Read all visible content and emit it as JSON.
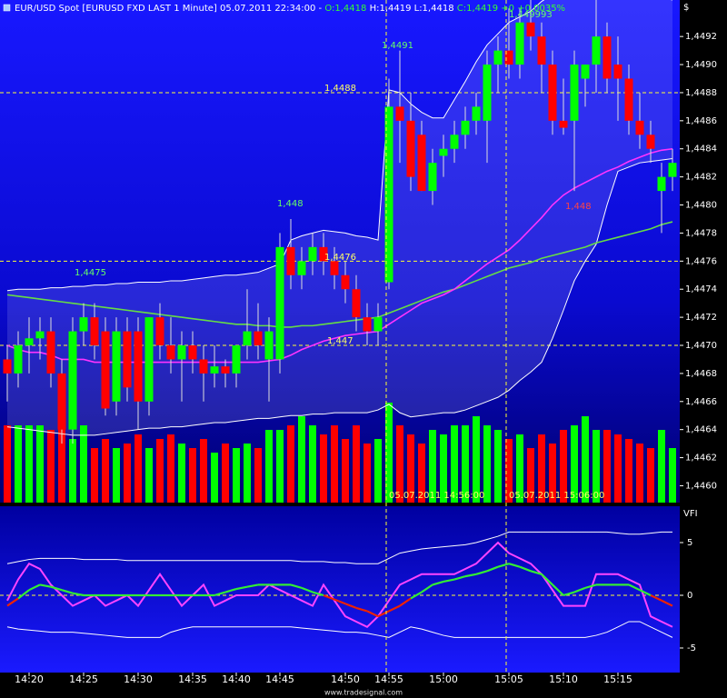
{
  "chart_data": [
    {
      "type": "candlestick",
      "title_parts": [
        {
          "text": "EUR/USD Spot [EURUSD FXD LAST 1 Minute] 05.07.2011 22:34:00 -",
          "color": "#ffffff"
        },
        {
          "text": "O:1,4418",
          "color": "#33ff33"
        },
        {
          "text": "H:1,4419 L:1,4418",
          "color": "#ffffff"
        },
        {
          "text": "C:1,4419 +0 +0,0035%",
          "color": "#33ff33"
        }
      ],
      "axis_label": "$",
      "open": [
        1.4469,
        1.4468,
        1.447,
        1.44705,
        1.4471,
        1.4468,
        1.4464,
        1.4471,
        1.4472,
        1.4471,
        1.4466,
        1.4471,
        1.4471,
        1.4466,
        1.4472,
        1.447,
        1.4469,
        1.447,
        1.4469,
        1.4468,
        1.44685,
        1.4468,
        1.447,
        1.4471,
        1.4469,
        1.4469,
        1.4477,
        1.4475,
        1.4476,
        1.4477,
        1.4476,
        1.4475,
        1.4474,
        1.4472,
        1.4471,
        1.44745,
        1.4487,
        1.4486,
        1.4485,
        1.4481,
        1.44835,
        1.4484,
        1.4485,
        1.4486,
        1.4486,
        1.449,
        1.4491,
        1.449,
        1.4493,
        1.4492,
        1.449,
        1.4486,
        1.4486,
        1.4489,
        1.449,
        1.4492,
        1.449,
        1.4489,
        1.4486,
        1.4485,
        1.4481,
        1.4482
      ],
      "high": [
        1.447,
        1.4471,
        1.4472,
        1.4472,
        1.4472,
        1.4469,
        1.4472,
        1.4473,
        1.4473,
        1.4472,
        1.4472,
        1.4472,
        1.4472,
        1.4472,
        1.4473,
        1.4472,
        1.4471,
        1.4471,
        1.447,
        1.447,
        1.4469,
        1.447,
        1.4474,
        1.4473,
        1.4472,
        1.4478,
        1.4479,
        1.4477,
        1.4478,
        1.4478,
        1.4477,
        1.4476,
        1.4475,
        1.4473,
        1.4473,
        1.4489,
        1.4491,
        1.4488,
        1.4486,
        1.4484,
        1.4485,
        1.4486,
        1.4487,
        1.4488,
        1.4491,
        1.4492,
        1.4494,
        1.4494,
        1.4495,
        1.4493,
        1.4491,
        1.4489,
        1.4491,
        1.449,
        1.4495,
        1.4493,
        1.4492,
        1.449,
        1.4488,
        1.4486,
        1.4483,
        1.4484
      ],
      "low": [
        1.4466,
        1.4467,
        1.4468,
        1.4469,
        1.4467,
        1.4463,
        1.4463,
        1.447,
        1.4469,
        1.4465,
        1.4465,
        1.4466,
        1.4464,
        1.4465,
        1.4469,
        1.4468,
        1.4466,
        1.4468,
        1.4466,
        1.4467,
        1.4467,
        1.4467,
        1.4469,
        1.4469,
        1.4466,
        1.4468,
        1.4474,
        1.4474,
        1.4475,
        1.4475,
        1.4474,
        1.4473,
        1.4471,
        1.447,
        1.447,
        1.4474,
        1.4483,
        1.4481,
        1.4481,
        1.448,
        1.4482,
        1.4483,
        1.4484,
        1.4485,
        1.4483,
        1.4488,
        1.4489,
        1.4489,
        1.4491,
        1.4488,
        1.4485,
        1.4485,
        1.4481,
        1.4487,
        1.4488,
        1.4488,
        1.4486,
        1.4485,
        1.4484,
        1.4483,
        1.4478,
        1.4481
      ],
      "close": [
        1.4468,
        1.447,
        1.44705,
        1.4471,
        1.4468,
        1.4464,
        1.4471,
        1.4472,
        1.447,
        1.44655,
        1.4471,
        1.4467,
        1.4466,
        1.4472,
        1.447,
        1.4469,
        1.447,
        1.4469,
        1.4468,
        1.44685,
        1.4468,
        1.447,
        1.4471,
        1.447,
        1.4471,
        1.4477,
        1.4475,
        1.4476,
        1.4477,
        1.4476,
        1.4475,
        1.4474,
        1.4472,
        1.4471,
        1.4472,
        1.4487,
        1.4486,
        1.4482,
        1.4481,
        1.4483,
        1.4484,
        1.4485,
        1.4486,
        1.4487,
        1.449,
        1.4491,
        1.449,
        1.4493,
        1.4492,
        1.449,
        1.4486,
        1.44855,
        1.449,
        1.449,
        1.4492,
        1.4489,
        1.4489,
        1.4486,
        1.4485,
        1.4484,
        1.4482,
        1.4483
      ],
      "up_color": "#00ff00",
      "down_color": "#ff0000",
      "volume": [
        85,
        85,
        85,
        85,
        80,
        90,
        70,
        85,
        60,
        70,
        60,
        65,
        75,
        60,
        70,
        75,
        65,
        60,
        70,
        55,
        65,
        60,
        65,
        60,
        80,
        80,
        85,
        95,
        85,
        75,
        85,
        70,
        85,
        65,
        70,
        110,
        85,
        75,
        65,
        80,
        75,
        85,
        85,
        95,
        85,
        80,
        70,
        75,
        60,
        75,
        65,
        80,
        85,
        95,
        80,
        80,
        75,
        70,
        65,
        60,
        80,
        60
      ],
      "series": [
        {
          "color": "#ffffff",
          "values": [
            1.44739,
            1.4474,
            1.4474,
            1.4474,
            1.44741,
            1.44741,
            1.44742,
            1.44742,
            1.44743,
            1.44743,
            1.44744,
            1.44744,
            1.44745,
            1.44745,
            1.44745,
            1.44746,
            1.44746,
            1.44747,
            1.44748,
            1.44749,
            1.4475,
            1.4475,
            1.44751,
            1.44752,
            1.44755,
            1.44758,
            1.44775,
            1.44778,
            1.4478,
            1.44782,
            1.44781,
            1.4478,
            1.44778,
            1.44777,
            1.44775,
            1.44882,
            1.4488,
            1.44872,
            1.44866,
            1.44862,
            1.44862,
            1.44875,
            1.44888,
            1.44902,
            1.44914,
            1.44922,
            1.4493,
            1.44934,
            1.44938,
            1.44945,
            1.4495,
            1.44952,
            1.44954,
            1.44955,
            1.44956,
            1.44957,
            1.44957,
            1.44955,
            1.44952,
            1.4495,
            1.44948,
            1.44946
          ]
        },
        {
          "color": "#ffffff",
          "values": [
            1.44642,
            1.44641,
            1.4464,
            1.44639,
            1.44638,
            1.44637,
            1.44636,
            1.44636,
            1.44636,
            1.44637,
            1.44638,
            1.44639,
            1.4464,
            1.44641,
            1.44641,
            1.44642,
            1.44642,
            1.44643,
            1.44644,
            1.44645,
            1.44645,
            1.44646,
            1.44647,
            1.44648,
            1.44648,
            1.44649,
            1.4465,
            1.4465,
            1.44651,
            1.44651,
            1.44652,
            1.44652,
            1.44652,
            1.44652,
            1.44654,
            1.44658,
            1.44652,
            1.44649,
            1.4465,
            1.44651,
            1.44652,
            1.44652,
            1.44654,
            1.44657,
            1.4466,
            1.44663,
            1.44668,
            1.44675,
            1.44681,
            1.44688,
            1.44705,
            1.44725,
            1.44746,
            1.4476,
            1.44772,
            1.448,
            1.44824,
            1.44827,
            1.4483,
            1.44831,
            1.44832,
            1.44833
          ]
        },
        {
          "color": "#66dd44",
          "values": [
            1.44736,
            1.44735,
            1.44734,
            1.44733,
            1.44732,
            1.44731,
            1.4473,
            1.44729,
            1.44728,
            1.44727,
            1.44726,
            1.44725,
            1.44724,
            1.44723,
            1.44722,
            1.44721,
            1.4472,
            1.44719,
            1.44718,
            1.44717,
            1.44716,
            1.44715,
            1.44715,
            1.44714,
            1.44714,
            1.44713,
            1.44713,
            1.44714,
            1.44714,
            1.44715,
            1.44716,
            1.44717,
            1.44718,
            1.44719,
            1.4472,
            1.44723,
            1.44726,
            1.44729,
            1.44732,
            1.44735,
            1.44738,
            1.4474,
            1.44743,
            1.44746,
            1.44749,
            1.44752,
            1.44755,
            1.44757,
            1.44759,
            1.44762,
            1.44764,
            1.44766,
            1.44768,
            1.4477,
            1.44773,
            1.44775,
            1.44777,
            1.44779,
            1.44781,
            1.44783,
            1.44786,
            1.44788
          ]
        },
        {
          "color": "#ff33ff",
          "values": [
            1.447,
            1.44697,
            1.44695,
            1.44695,
            1.44693,
            1.4469,
            1.4469,
            1.4469,
            1.44688,
            1.44688,
            1.44688,
            1.44688,
            1.44688,
            1.44688,
            1.44688,
            1.44688,
            1.44688,
            1.44688,
            1.44688,
            1.44688,
            1.44688,
            1.44688,
            1.44688,
            1.44688,
            1.44689,
            1.4469,
            1.44693,
            1.44697,
            1.447,
            1.44703,
            1.44705,
            1.44707,
            1.44708,
            1.44709,
            1.4471,
            1.44715,
            1.4472,
            1.44725,
            1.4473,
            1.44733,
            1.44736,
            1.4474,
            1.44746,
            1.44752,
            1.44758,
            1.44763,
            1.44768,
            1.44775,
            1.44783,
            1.44791,
            1.448,
            1.44807,
            1.44812,
            1.44816,
            1.4482,
            1.44824,
            1.44827,
            1.44831,
            1.44834,
            1.44837,
            1.44839,
            1.4484
          ]
        }
      ],
      "band_fill": "rgba(200,200,255,0.16)",
      "ylim": [
        1.44588,
        1.44946
      ],
      "yticks": [
        {
          "value": 1.446,
          "label": "1,4460"
        },
        {
          "value": 1.4462,
          "label": "1,4462"
        },
        {
          "value": 1.4464,
          "label": "1,4464"
        },
        {
          "value": 1.4466,
          "label": "1,4466"
        },
        {
          "value": 1.4468,
          "label": "1,4468"
        },
        {
          "value": 1.447,
          "label": "1,4470"
        },
        {
          "value": 1.4472,
          "label": "1,4472"
        },
        {
          "value": 1.4474,
          "label": "1,4474"
        },
        {
          "value": 1.4476,
          "label": "1,4476"
        },
        {
          "value": 1.4478,
          "label": "1,4478"
        },
        {
          "value": 1.448,
          "label": "1,4480"
        },
        {
          "value": 1.4482,
          "label": "1,4482"
        },
        {
          "value": 1.4484,
          "label": "1,4484"
        },
        {
          "value": 1.4486,
          "label": "1,4486"
        },
        {
          "value": 1.4488,
          "label": "1,4488"
        },
        {
          "value": 1.449,
          "label": "1,4490"
        },
        {
          "value": 1.4492,
          "label": "1,4492"
        }
      ],
      "hlines": [
        1.4488,
        1.4476,
        1.447
      ],
      "hline_color": "#ffff33",
      "annotations": [
        {
          "text": "1,4491",
          "color": "#66ff66"
        },
        {
          "text": "1,4488",
          "color": "#ffff66"
        },
        {
          "text": "1,448",
          "color": "#66ff66"
        },
        {
          "text": "1,4476",
          "color": "#ffff66"
        },
        {
          "text": "1,4475",
          "color": "#66ff66"
        },
        {
          "text": "1,447",
          "color": "#ffff66"
        },
        {
          "text": "1,449993",
          "color": "#66ff66"
        },
        {
          "text": "1,448",
          "color": "#ff4444"
        }
      ],
      "crosshair_labels": [
        "05.07.2011 14:56:00",
        "05.07.2011 15:06:00"
      ]
    },
    {
      "type": "line",
      "title": "VFI",
      "categories": [
        null,
        null,
        "14:20",
        null,
        null,
        null,
        null,
        "14:25",
        null,
        null,
        null,
        null,
        "14:30",
        null,
        null,
        null,
        null,
        "14:35",
        null,
        null,
        null,
        "14:40",
        null,
        null,
        null,
        "14:45",
        null,
        null,
        null,
        null,
        null,
        "14:50",
        null,
        null,
        null,
        "14:55",
        null,
        null,
        null,
        null,
        "15:00",
        null,
        null,
        null,
        null,
        null,
        "15:05",
        null,
        null,
        null,
        null,
        "15:10",
        null,
        null,
        null,
        null,
        "15:15",
        null,
        null,
        null,
        null,
        null
      ],
      "series": [
        {
          "color": "#ffffff",
          "values": [
            3,
            3.2,
            3.4,
            3.5,
            3.5,
            3.5,
            3.5,
            3.4,
            3.4,
            3.4,
            3.4,
            3.3,
            3.3,
            3.3,
            3.3,
            3.3,
            3.3,
            3.3,
            3.3,
            3.3,
            3.3,
            3.3,
            3.3,
            3.3,
            3.3,
            3.3,
            3.3,
            3.2,
            3.2,
            3.2,
            3.1,
            3.1,
            3,
            3,
            3,
            3.5,
            4,
            4.2,
            4.4,
            4.5,
            4.6,
            4.7,
            4.8,
            5,
            5.3,
            5.6,
            6,
            6,
            6,
            6,
            6,
            6,
            6,
            6,
            6,
            6,
            5.9,
            5.8,
            5.8,
            5.9,
            6,
            6
          ]
        },
        {
          "color": "#ffffff",
          "values": [
            -3,
            -3.2,
            -3.3,
            -3.4,
            -3.5,
            -3.5,
            -3.5,
            -3.6,
            -3.7,
            -3.8,
            -3.9,
            -4,
            -4,
            -4,
            -4,
            -3.5,
            -3.2,
            -3,
            -3,
            -3,
            -3,
            -3,
            -3,
            -3,
            -3,
            -3,
            -3,
            -3.1,
            -3.2,
            -3.3,
            -3.4,
            -3.5,
            -3.5,
            -3.6,
            -3.8,
            -4,
            -3.5,
            -3,
            -3.2,
            -3.5,
            -3.8,
            -4,
            -4,
            -4,
            -4,
            -4,
            -4,
            -4,
            -4,
            -4,
            -4,
            -4,
            -4,
            -4,
            -3.8,
            -3.5,
            -3,
            -2.5,
            -2.5,
            -3,
            -3.5,
            -4
          ]
        },
        {
          "color": "#ff44ff",
          "values": [
            -0.5,
            1.5,
            3,
            2.5,
            1,
            0,
            -1,
            -0.5,
            0,
            -1,
            -0.5,
            0,
            -1,
            0.5,
            2,
            0.5,
            -1,
            0,
            1,
            -1,
            -0.5,
            0,
            0,
            0,
            1,
            0.5,
            0,
            -0.5,
            -1,
            1,
            -0.5,
            -2,
            -2.5,
            -3,
            -2,
            -0.5,
            1,
            1.5,
            2,
            2,
            2,
            2,
            2.5,
            3,
            4,
            5,
            4,
            3.5,
            3,
            2,
            0.5,
            -1,
            -1,
            -1,
            2,
            2,
            2,
            1.5,
            1,
            -2,
            -2.5,
            -3
          ]
        },
        {
          "color": "#33ee33",
          "negative_color": "#ee2200",
          "values": [
            -1,
            -0.3,
            0.5,
            1,
            0.8,
            0.5,
            0.2,
            0,
            0,
            0,
            0,
            0,
            0,
            0,
            0,
            0,
            0,
            0,
            0,
            0,
            0.3,
            0.6,
            0.8,
            1,
            1,
            1,
            1,
            0.7,
            0.3,
            0,
            -0.4,
            -0.8,
            -1.2,
            -1.5,
            -2,
            -1.5,
            -1,
            -0.3,
            0.3,
            1,
            1.3,
            1.5,
            1.8,
            2,
            2.3,
            2.7,
            3,
            2.7,
            2.3,
            2,
            1,
            0,
            0.3,
            0.7,
            1,
            1,
            1,
            1,
            0.5,
            0,
            -0.5,
            -1
          ]
        }
      ],
      "ylim": [
        -7.33,
        8.45
      ],
      "yticks": [
        -5,
        0,
        5
      ],
      "hlines": [
        0
      ],
      "hline_color": "#ffff33"
    }
  ],
  "footer": "www.tradesignal.com"
}
